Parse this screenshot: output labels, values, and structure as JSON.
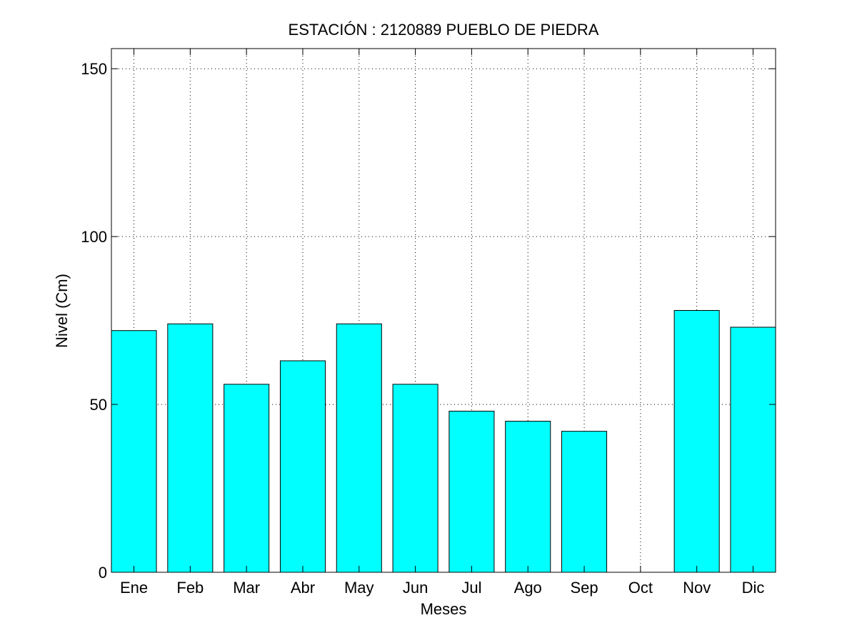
{
  "chart_data": {
    "type": "bar",
    "title": "ESTACIÓN :  2120889  PUEBLO DE PIEDRA",
    "xlabel": "Meses",
    "ylabel": "Nivel (Cm)",
    "categories": [
      "Ene",
      "Feb",
      "Mar",
      "Abr",
      "May",
      "Jun",
      "Jul",
      "Ago",
      "Sep",
      "Oct",
      "Nov",
      "Dic"
    ],
    "values": [
      72,
      74,
      56,
      63,
      74,
      56,
      48,
      45,
      42,
      0,
      78,
      73
    ],
    "ylim": [
      0,
      156
    ],
    "yticks": [
      "0",
      "50",
      "100",
      "150"
    ],
    "xlim": [
      0.6,
      12.4
    ],
    "grid": true,
    "bar_color": "#00FFFF",
    "edge_color": "#000000"
  }
}
